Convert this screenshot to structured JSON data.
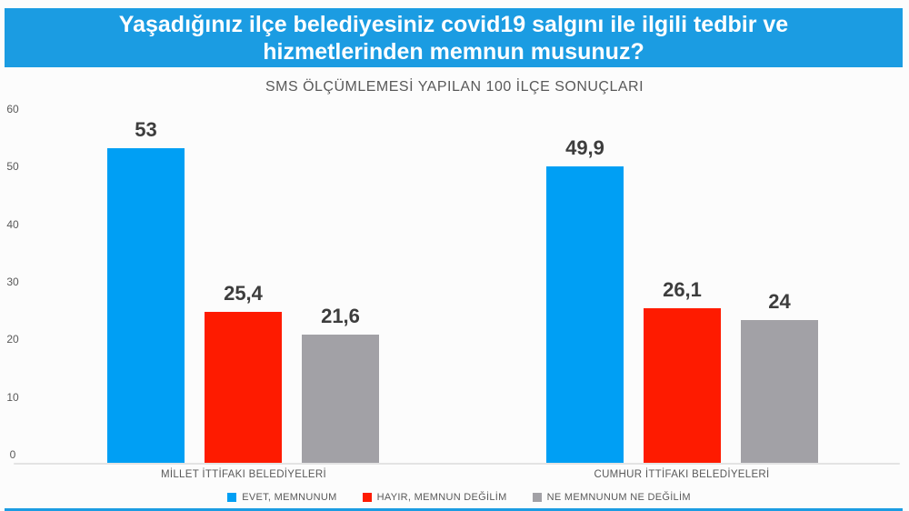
{
  "colors": {
    "title_bar_blue": "#1b9ce2",
    "series_blue": "#009ff4",
    "series_red": "#fe1b00",
    "series_gray": "#a2a1a6",
    "axis_text_gray": "#595959",
    "data_label_gray": "#3d3d3d"
  },
  "chart_data": {
    "type": "bar",
    "title": "Yaşadığınız ilçe belediyesiniz covid19 salgını ile ilgili tedbir ve hizmetlerinden memnun musunuz?",
    "subtitle": "SMS ÖLÇÜMLEMESİ YAPILAN 100 İLÇE SONUÇLARI",
    "categories": [
      "MİLLET İTTİFAKI BELEDİYELERİ",
      "CUMHUR İTTİFAKI BELEDİYELERİ"
    ],
    "series": [
      {
        "name": "EVET, MEMNUNUM",
        "color": "#009ff4",
        "values": [
          53,
          49.9
        ],
        "labels": [
          "53",
          "49,9"
        ]
      },
      {
        "name": "HAYIR, MEMNUN DEĞİLİM",
        "color": "#fe1b00",
        "values": [
          25.4,
          26.1
        ],
        "labels": [
          "25,4",
          "26,1"
        ]
      },
      {
        "name": "NE MEMNUNUM NE DEĞİLİM",
        "color": "#a2a1a6",
        "values": [
          21.6,
          24
        ],
        "labels": [
          "21,6",
          "24"
        ]
      }
    ],
    "y_axis": {
      "min": 0,
      "max": 60,
      "step": 10,
      "ticks": [
        0,
        10,
        20,
        30,
        40,
        50,
        60
      ]
    },
    "legend_position": "bottom",
    "grid": false
  }
}
